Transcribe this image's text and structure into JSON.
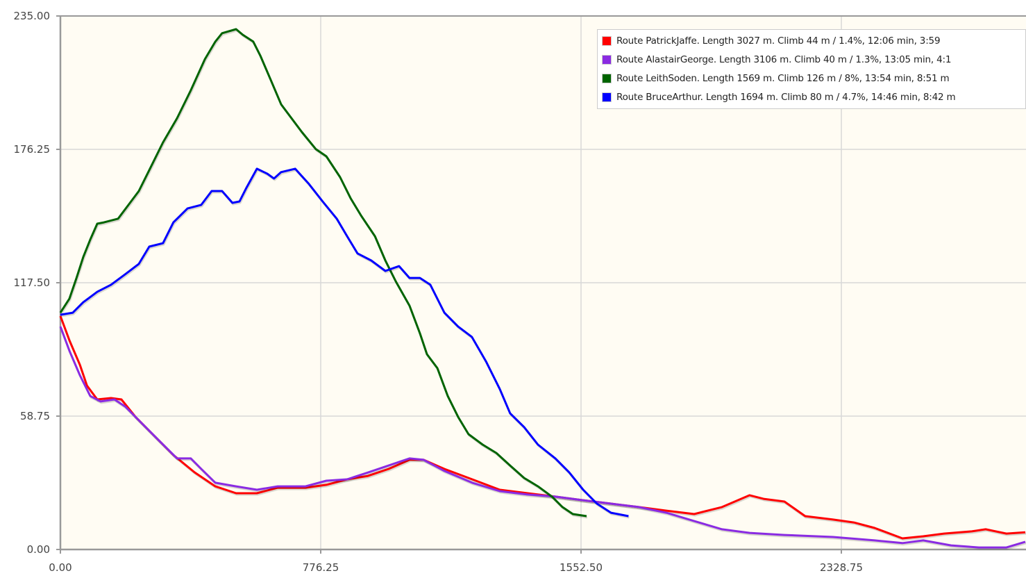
{
  "chart_data": {
    "type": "line",
    "title": "",
    "xlabel": "",
    "ylabel": "",
    "xlim": [
      0,
      3105
    ],
    "ylim": [
      0,
      235
    ],
    "x_ticks": [
      "0.00",
      "776.25",
      "1552.50",
      "2328.75"
    ],
    "x_tick_values": [
      0,
      776.25,
      1552.5,
      2328.75
    ],
    "y_ticks": [
      "0.00",
      "58.75",
      "117.50",
      "176.25",
      "235.00"
    ],
    "y_tick_values": [
      0,
      58.75,
      117.5,
      176.25,
      235
    ],
    "grid": true,
    "legend_placement": "top-right",
    "series": [
      {
        "name": "Route PatrickJaffe. Length 3027 m. Climb 44 m / 1.4%, 12:06 min, 3:59",
        "color": "#ff0000",
        "x": [
          0,
          27,
          58,
          79,
          110,
          151,
          182,
          224,
          275,
          337,
          400,
          462,
          524,
          586,
          648,
          731,
          793,
          855,
          917,
          979,
          1041,
          1083,
          1145,
          1228,
          1310,
          1393,
          1476,
          1559,
          1642,
          1724,
          1807,
          1890,
          1973,
          2055,
          2097,
          2159,
          2221,
          2304,
          2366,
          2428,
          2511,
          2573,
          2635,
          2718,
          2759,
          2821,
          2879
        ],
        "y": [
          102.8,
          92.1,
          81.4,
          72.2,
          66.1,
          66.7,
          66.1,
          58.4,
          50.8,
          41.6,
          34.0,
          27.8,
          24.8,
          24.8,
          27.2,
          27.2,
          28.5,
          30.9,
          32.4,
          35.5,
          39.5,
          39.5,
          35.5,
          30.9,
          26.3,
          24.8,
          23.3,
          21.7,
          20.2,
          18.7,
          17.1,
          15.6,
          18.7,
          23.9,
          22.3,
          21.1,
          14.7,
          13.2,
          11.9,
          9.5,
          4.9,
          5.8,
          7.0,
          8.0,
          8.9,
          7.0,
          7.6
        ]
      },
      {
        "name": "Route AlastairGeorge. Length 3106 m. Climb 40 m / 1.3%, 13:05 min, 4:1",
        "color": "#8a2be2",
        "x": [
          0,
          27,
          58,
          89,
          120,
          161,
          193,
          234,
          296,
          348,
          389,
          420,
          462,
          524,
          586,
          648,
          731,
          793,
          855,
          917,
          979,
          1041,
          1083,
          1145,
          1228,
          1310,
          1393,
          1476,
          1559,
          1642,
          1724,
          1807,
          1890,
          1973,
          2055,
          2159,
          2304,
          2428,
          2511,
          2573,
          2656,
          2739,
          2821,
          2879
        ],
        "y": [
          98.2,
          87.5,
          76.8,
          67.6,
          65.2,
          66.1,
          63.0,
          56.9,
          47.7,
          40.1,
          40.1,
          35.5,
          29.4,
          27.8,
          26.3,
          27.8,
          27.8,
          30.3,
          30.9,
          33.9,
          37.0,
          40.1,
          39.5,
          34.6,
          29.4,
          25.7,
          24.2,
          23.3,
          21.7,
          20.2,
          18.7,
          16.2,
          12.5,
          8.9,
          7.3,
          6.4,
          5.5,
          4.0,
          2.8,
          4.0,
          1.8,
          0.9,
          0.9,
          3.4
        ]
      },
      {
        "name": "Route LeithSoden. Length 1569 m. Climb 126 m / 8%, 13:54 min, 8:51 m",
        "color": "#006400",
        "x": [
          0,
          27,
          48,
          68,
          89,
          110,
          130,
          172,
          203,
          234,
          265,
          306,
          348,
          389,
          431,
          462,
          482,
          524,
          544,
          575,
          596,
          627,
          658,
          689,
          720,
          762,
          793,
          834,
          865,
          896,
          938,
          969,
          1000,
          1041,
          1072,
          1093,
          1124,
          1155,
          1186,
          1217,
          1259,
          1300,
          1341,
          1383,
          1424,
          1466,
          1497,
          1528,
          1569
        ],
        "y": [
          104.3,
          110.5,
          119.6,
          128.8,
          136.5,
          143.5,
          144.1,
          145.7,
          151.8,
          157.9,
          167.1,
          179.3,
          190.0,
          202.3,
          216.0,
          223.7,
          227.4,
          229.2,
          226.7,
          223.7,
          217.6,
          206.9,
          196.1,
          190.0,
          183.9,
          176.3,
          173.2,
          164.0,
          154.8,
          147.2,
          138.0,
          127.3,
          118.1,
          107.4,
          95.2,
          86.0,
          79.9,
          67.6,
          58.4,
          50.8,
          46.2,
          42.5,
          37.0,
          31.5,
          27.8,
          23.3,
          18.7,
          15.6,
          14.7
        ]
      },
      {
        "name": "Route BruceArthur. Length 1694 m. Climb 80 m / 4.7%, 14:46 min, 8:42 m",
        "color": "#0000ff",
        "x": [
          0,
          37,
          68,
          110,
          151,
          193,
          234,
          265,
          306,
          337,
          379,
          420,
          451,
          482,
          513,
          534,
          555,
          586,
          617,
          637,
          658,
          700,
          741,
          782,
          824,
          855,
          886,
          927,
          969,
          1010,
          1041,
          1072,
          1103,
          1145,
          1186,
          1227,
          1269,
          1310,
          1341,
          1383,
          1424,
          1476,
          1517,
          1559,
          1600,
          1642,
          1694
        ],
        "y": [
          103.4,
          104.3,
          108.9,
          113.5,
          116.6,
          121.2,
          125.8,
          133.4,
          134.9,
          144.1,
          150.2,
          151.8,
          157.9,
          157.9,
          152.7,
          153.3,
          159.4,
          167.7,
          165.5,
          163.4,
          166.2,
          167.7,
          161.0,
          153.3,
          145.7,
          138.0,
          130.4,
          127.3,
          122.7,
          124.8,
          119.6,
          119.6,
          116.6,
          104.3,
          98.2,
          93.6,
          82.9,
          70.7,
          60.0,
          53.9,
          46.2,
          40.1,
          34.0,
          26.3,
          20.2,
          16.2,
          14.7
        ]
      }
    ]
  }
}
